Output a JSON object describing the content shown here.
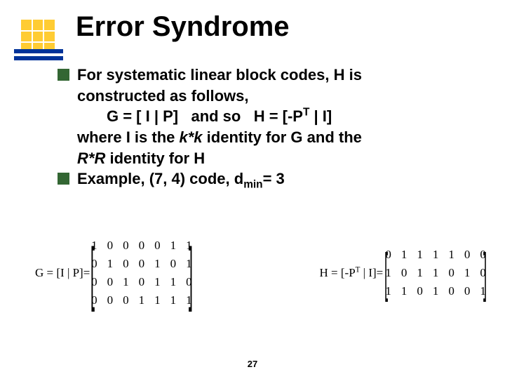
{
  "title": "Error Syndrome",
  "bullets": {
    "b1_l1": "For systematic linear block codes, H is",
    "b1_l2": "constructed as follows,",
    "b1_eq": "G = [ I | P]   and so   H = [-P",
    "b1_eq_sup": "T",
    "b1_eq_tail": " | I]",
    "b1_l4a": "where I is the ",
    "b1_l4b": "k*k",
    "b1_l4c": " identity for G and the",
    "b1_l5a": "R*R",
    "b1_l5b": " identity for H",
    "b2_a": "Example, (7, 4) code, d",
    "b2_sub": "min",
    "b2_b": "= 3"
  },
  "matrices": {
    "G": {
      "label_pre": "G = ",
      "label_bracket": "[I | P]",
      "label_post": "=",
      "rows": [
        [
          "1",
          "0",
          "0",
          "0",
          "0",
          "1",
          "1"
        ],
        [
          "0",
          "1",
          "0",
          "0",
          "1",
          "0",
          "1"
        ],
        [
          "0",
          "0",
          "1",
          "0",
          "1",
          "1",
          "0"
        ],
        [
          "0",
          "0",
          "0",
          "1",
          "1",
          "1",
          "1"
        ]
      ]
    },
    "H": {
      "label_pre": "H = ",
      "label_bracket_pre": "[-P",
      "label_bracket_sup": "T",
      "label_bracket_post": " | I]",
      "label_post": "=",
      "rows": [
        [
          "0",
          "1",
          "1",
          "1",
          "1",
          "0",
          "0"
        ],
        [
          "1",
          "0",
          "1",
          "1",
          "0",
          "1",
          "0"
        ],
        [
          "1",
          "1",
          "0",
          "1",
          "0",
          "0",
          "1"
        ]
      ]
    }
  },
  "pagenum": "27"
}
